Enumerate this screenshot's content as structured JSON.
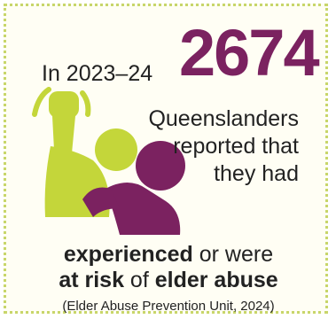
{
  "lead": "In 2023–24",
  "number": "2674",
  "side_lines": [
    "Queenslanders",
    "reported that",
    "they had"
  ],
  "bottom": {
    "line1_bold": "experienced",
    "line1_rest": " or were",
    "line2_bold1": "at risk",
    "line2_mid": " of ",
    "line2_bold2": "elder abuse"
  },
  "citation": "(Elder Abuse Prevention Unit, 2024)",
  "colors": {
    "purple": "#7b2260",
    "green": "#c4d63a",
    "border": "#c8d66a"
  },
  "icons": [
    "raised-fist-figure-icon",
    "cowering-figure-icon"
  ]
}
